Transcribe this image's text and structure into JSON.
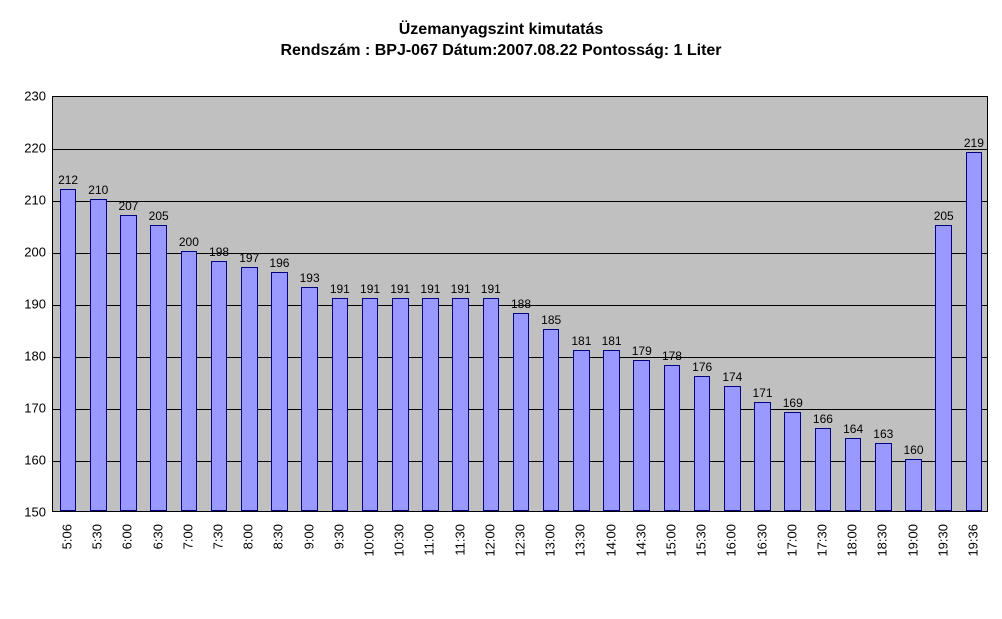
{
  "title": {
    "line1": "Üzemanyagszint kimutatás",
    "line2": "Rendszám : BPJ-067  Dátum:2007.08.22  Pontosság: 1 Liter",
    "fontsize": 16,
    "fontweight": "bold",
    "color": "#000000"
  },
  "chart": {
    "type": "bar",
    "plot_background": "#c0c0c0",
    "page_background": "#ffffff",
    "grid_color": "#000000",
    "axis_color": "#000000",
    "bar_fill": "#9999ff",
    "bar_border": "#000080",
    "y": {
      "min": 150,
      "max": 230,
      "tick_step": 10,
      "ticks": [
        150,
        160,
        170,
        180,
        190,
        200,
        210,
        220,
        230
      ],
      "label_fontsize": 13
    },
    "x": {
      "label_fontsize": 13,
      "label_rotation": -90
    },
    "value_label_fontsize": 12,
    "bar_width_ratio": 0.55,
    "categories": [
      "5:06",
      "5:30",
      "6:00",
      "6:30",
      "7:00",
      "7:30",
      "8:00",
      "8:30",
      "9:00",
      "9:30",
      "10:00",
      "10:30",
      "11:00",
      "11:30",
      "12:00",
      "12:30",
      "13:00",
      "13:30",
      "14:00",
      "14:30",
      "15:00",
      "15:30",
      "16:00",
      "16:30",
      "17:00",
      "17:30",
      "18:00",
      "18:30",
      "19:00",
      "19:30",
      "19:36"
    ],
    "values": [
      212,
      210,
      207,
      205,
      200,
      198,
      197,
      196,
      193,
      191,
      191,
      191,
      191,
      191,
      191,
      188,
      185,
      181,
      181,
      179,
      178,
      176,
      174,
      171,
      169,
      166,
      164,
      163,
      160,
      205,
      219
    ]
  }
}
